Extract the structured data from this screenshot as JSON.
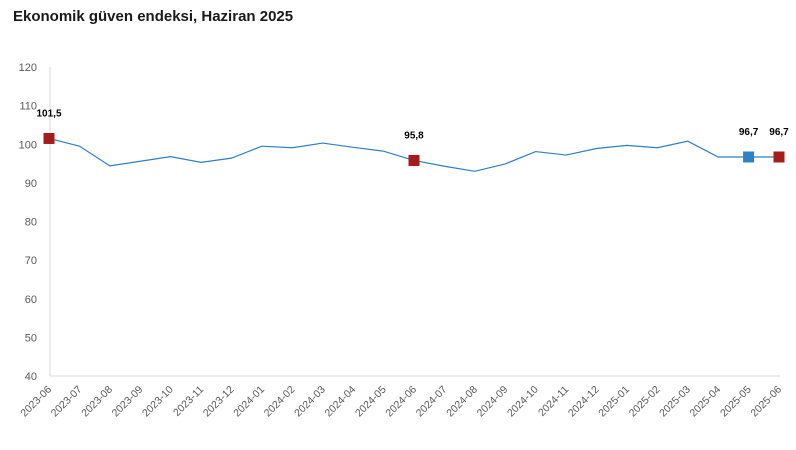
{
  "chart_data": {
    "type": "line",
    "title": "Ekonomik güven endeksi, Haziran 2025",
    "xlabel": "",
    "ylabel": "",
    "ylim": [
      40,
      120
    ],
    "yticks": [
      "40",
      "50",
      "60",
      "70",
      "80",
      "90",
      "100",
      "110",
      "120"
    ],
    "categories": [
      "2023-06",
      "2023-07",
      "2023-08",
      "2023-09",
      "2023-10",
      "2023-11",
      "2023-12",
      "2024-01",
      "2024-02",
      "2024-03",
      "2024-04",
      "2024-05",
      "2024-06",
      "2024-07",
      "2024-08",
      "2024-09",
      "2024-10",
      "2024-11",
      "2024-12",
      "2025-01",
      "2025-02",
      "2025-03",
      "2025-04",
      "2025-05",
      "2025-06"
    ],
    "series": [
      {
        "values": [
          101.5,
          99.5,
          94.4,
          95.6,
          96.8,
          95.3,
          96.4,
          99.5,
          99.1,
          100.3,
          99.2,
          98.2,
          95.8,
          94.3,
          93.0,
          94.9,
          98.1,
          97.2,
          98.9,
          99.7,
          99.1,
          100.8,
          96.7,
          96.7,
          96.7
        ]
      }
    ],
    "highlights": [
      {
        "category": "2023-06",
        "label": "101,5",
        "color": "#a51c1c"
      },
      {
        "category": "2024-06",
        "label": "95,8",
        "color": "#a51c1c"
      },
      {
        "category": "2025-05",
        "label": "96,7",
        "color": "#2f80c5"
      },
      {
        "category": "2025-06",
        "label": "96,7",
        "color": "#a51c1c"
      }
    ],
    "colors": {
      "line": "#2f7fc1",
      "axis": "#d9d9d9",
      "text": "#595959"
    },
    "grid": false,
    "legend": "none"
  }
}
